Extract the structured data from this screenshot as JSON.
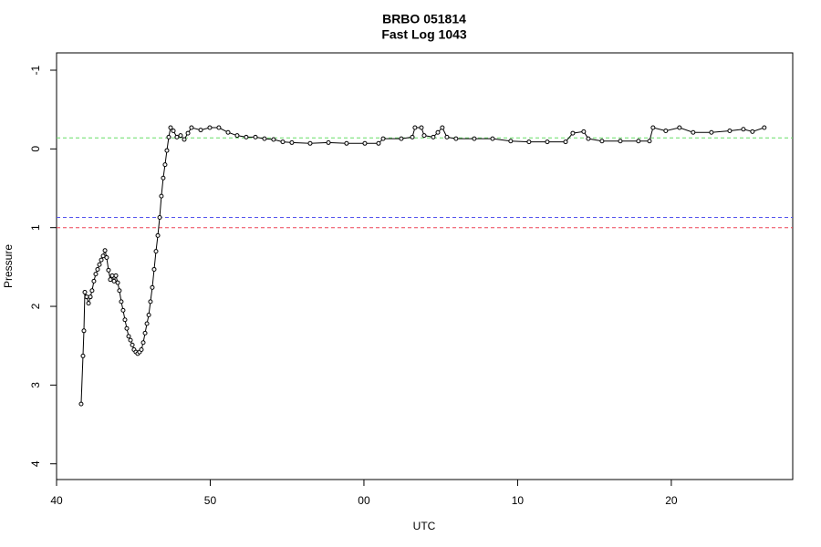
{
  "chart_data": {
    "type": "line",
    "title": "BRBO 051814",
    "subtitle": "Fast Log 1043",
    "x_label": "UTC",
    "y_label": "Pressure",
    "xlim": [
      40,
      87.9
    ],
    "ylim": [
      -1.22,
      4.2
    ],
    "y_inverted": true,
    "xticks": [
      40,
      50,
      {
        "value": 60,
        "label": "00"
      },
      {
        "value": 70,
        "label": "10"
      },
      {
        "value": 80,
        "label": "20"
      }
    ],
    "yticks": [
      -1,
      0,
      1,
      2,
      3,
      4
    ],
    "hlines": [
      {
        "value": -0.14,
        "color": "#66dd66"
      },
      {
        "value": 0.87,
        "color": "#5555ee"
      },
      {
        "value": 1.0,
        "color": "#ee4455"
      }
    ],
    "series": [
      {
        "color": "#000000",
        "x": [
          41.6,
          41.72,
          41.78,
          41.84,
          41.96,
          42.08,
          42.2,
          42.31,
          42.43,
          42.55,
          42.67,
          42.79,
          42.91,
          43.03,
          43.15,
          43.26,
          43.38,
          43.5,
          43.62,
          43.74,
          43.86,
          43.98,
          44.09,
          44.21,
          44.33,
          44.45,
          44.57,
          44.69,
          44.81,
          44.93,
          45.04,
          45.16,
          45.28,
          45.4,
          45.52,
          45.64,
          45.76,
          45.88,
          46.0,
          46.11,
          46.23,
          46.35,
          46.47,
          46.59,
          46.71,
          46.82,
          46.94,
          47.06,
          47.18,
          47.3,
          47.42,
          47.6,
          47.83,
          48.07,
          48.31,
          48.55,
          48.78,
          49.38,
          49.97,
          50.56,
          51.16,
          51.75,
          52.34,
          52.94,
          53.53,
          54.12,
          54.72,
          55.31,
          56.5,
          57.69,
          58.87,
          60.06,
          60.95,
          61.25,
          62.43,
          63.15,
          63.32,
          63.74,
          63.92,
          64.51,
          64.81,
          65.1,
          65.4,
          65.99,
          67.18,
          68.37,
          69.55,
          70.74,
          71.93,
          73.12,
          73.59,
          74.3,
          74.6,
          75.49,
          76.68,
          77.86,
          78.58,
          78.81,
          79.64,
          80.53,
          81.42,
          82.61,
          83.8,
          84.69,
          85.28,
          86.05
        ],
        "values": [
          3.24,
          2.63,
          2.31,
          1.82,
          1.88,
          1.96,
          1.88,
          1.8,
          1.68,
          1.59,
          1.53,
          1.47,
          1.41,
          1.36,
          1.29,
          1.38,
          1.54,
          1.66,
          1.61,
          1.68,
          1.61,
          1.7,
          1.8,
          1.94,
          2.05,
          2.17,
          2.28,
          2.38,
          2.43,
          2.49,
          2.55,
          2.58,
          2.6,
          2.58,
          2.55,
          2.46,
          2.34,
          2.22,
          2.11,
          1.94,
          1.76,
          1.53,
          1.3,
          1.1,
          0.87,
          0.6,
          0.37,
          0.2,
          0.02,
          -0.15,
          -0.27,
          -0.23,
          -0.15,
          -0.17,
          -0.12,
          -0.2,
          -0.27,
          -0.24,
          -0.27,
          -0.27,
          -0.21,
          -0.17,
          -0.15,
          -0.15,
          -0.13,
          -0.12,
          -0.09,
          -0.08,
          -0.07,
          -0.08,
          -0.07,
          -0.07,
          -0.07,
          -0.13,
          -0.13,
          -0.15,
          -0.27,
          -0.27,
          -0.17,
          -0.15,
          -0.21,
          -0.27,
          -0.15,
          -0.13,
          -0.13,
          -0.13,
          -0.1,
          -0.09,
          -0.09,
          -0.09,
          -0.2,
          -0.22,
          -0.13,
          -0.1,
          -0.1,
          -0.1,
          -0.1,
          -0.27,
          -0.23,
          -0.27,
          -0.21,
          -0.21,
          -0.23,
          -0.25,
          -0.22,
          -0.27
        ]
      }
    ]
  }
}
